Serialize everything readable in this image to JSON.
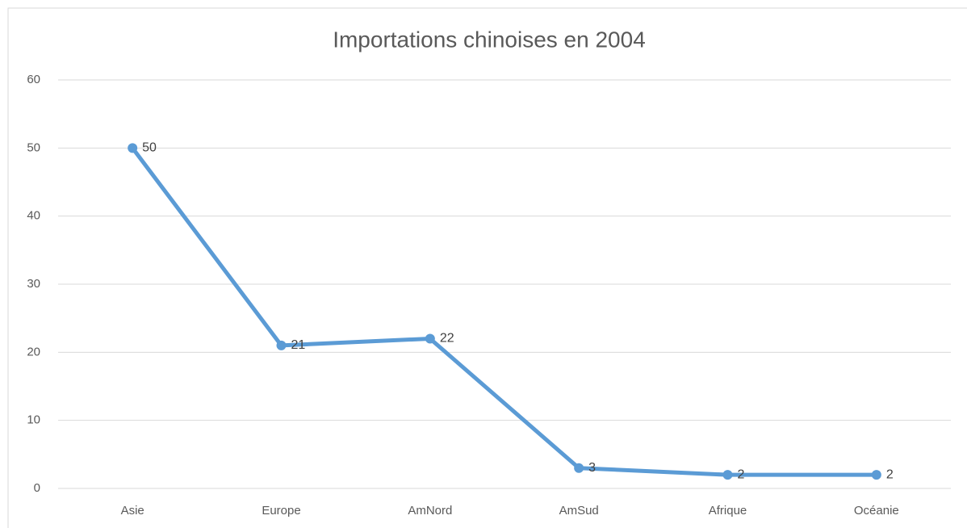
{
  "chart_data": {
    "type": "line",
    "title": "Importations chinoises en 2004",
    "categories": [
      "Asie",
      "Europe",
      "AmNord",
      "AmSud",
      "Afrique",
      "Océanie"
    ],
    "values": [
      50,
      21,
      22,
      3,
      2,
      2
    ],
    "color": "#5b9bd5",
    "ylim": [
      0,
      60
    ],
    "yticks": [
      0,
      10,
      20,
      30,
      40,
      50,
      60
    ],
    "grid": true
  }
}
